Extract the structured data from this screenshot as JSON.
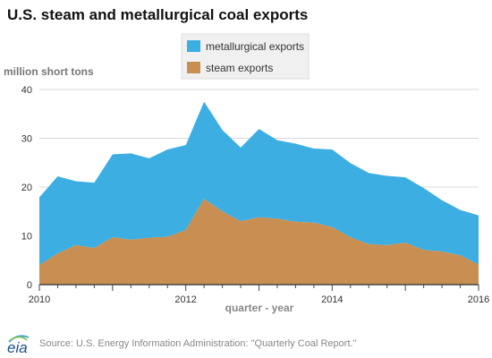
{
  "title": "U.S. steam and metallurgical coal exports",
  "source": "Source: U.S. Energy Information Administration: \"Quarterly Coal Report.\"",
  "logo_text": "eia",
  "chart_data": {
    "type": "area",
    "stacked": true,
    "title": "U.S. steam and metallurgical coal exports",
    "xlabel": "quarter - year",
    "ylabel": "million short tons",
    "xlim": [
      2010,
      2016
    ],
    "ylim": [
      0,
      40
    ],
    "x_ticks": [
      2010,
      2012,
      2014,
      2016
    ],
    "y_ticks": [
      0,
      10,
      20,
      30,
      40
    ],
    "grid": "horizontal",
    "legend_position": "top-center",
    "x": [
      2010.0,
      2010.25,
      2010.5,
      2010.75,
      2011.0,
      2011.25,
      2011.5,
      2011.75,
      2012.0,
      2012.25,
      2012.5,
      2012.75,
      2013.0,
      2013.25,
      2013.5,
      2013.75,
      2014.0,
      2014.25,
      2014.5,
      2014.75,
      2015.0,
      2015.25,
      2015.5,
      2015.75,
      2016.0
    ],
    "series": [
      {
        "name": "steam exports",
        "color": "#c98f52",
        "values": [
          4.0,
          6.4,
          8.1,
          7.5,
          9.7,
          9.2,
          9.6,
          9.8,
          11.2,
          17.6,
          15.0,
          13.0,
          13.8,
          13.5,
          12.9,
          12.7,
          11.8,
          9.7,
          8.3,
          8.1,
          8.6,
          7.1,
          6.8,
          6.0,
          4.1
        ]
      },
      {
        "name": "metallurgical exports",
        "color": "#3caee2",
        "values": [
          13.9,
          15.8,
          13.1,
          13.4,
          17.0,
          17.7,
          16.3,
          17.9,
          17.4,
          19.9,
          16.7,
          15.1,
          18.1,
          16.1,
          16.0,
          15.2,
          15.9,
          15.2,
          14.6,
          14.2,
          13.4,
          12.7,
          10.5,
          9.3,
          10.1
        ]
      }
    ]
  },
  "colors": {
    "grid": "#d9d9d9",
    "axis": "#444444",
    "tick_text": "#333333",
    "legend_bg": "#f0f0f0"
  }
}
